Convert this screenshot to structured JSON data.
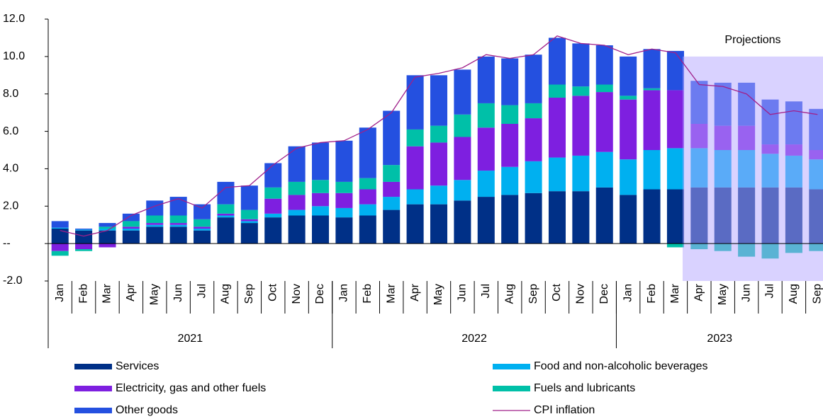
{
  "chart_data": {
    "type": "stacked_bar",
    "categories": [
      "Jan",
      "Feb",
      "Mar",
      "Apr",
      "May",
      "Jun",
      "Jul",
      "Aug",
      "Sep",
      "Oct",
      "Nov",
      "Dec",
      "Jan",
      "Feb",
      "Mar",
      "Apr",
      "May",
      "Jun",
      "Jul",
      "Aug",
      "Sep",
      "Oct",
      "Nov",
      "Dec",
      "Jan",
      "Feb",
      "Mar",
      "Apr",
      "May",
      "Jun",
      "Jul",
      "Aug",
      "Sep"
    ],
    "groups": [
      {
        "label": "2021",
        "count": 12
      },
      {
        "label": "2022",
        "count": 12
      },
      {
        "label": "2023",
        "count": 9
      }
    ],
    "series": [
      {
        "name": "Services",
        "color": "#003087",
        "values": [
          0.8,
          0.7,
          0.7,
          0.7,
          0.9,
          0.9,
          0.7,
          1.4,
          1.1,
          1.4,
          1.5,
          1.5,
          1.4,
          1.5,
          1.8,
          2.1,
          2.1,
          2.3,
          2.5,
          2.6,
          2.7,
          2.8,
          2.8,
          3.0,
          2.6,
          2.9,
          2.9,
          3.0,
          3.0,
          3.0,
          3.0,
          3.0,
          2.9
        ]
      },
      {
        "name": "Food and non-alcoholic beverages",
        "color": "#00b0f0",
        "values": [
          0.05,
          0.05,
          0.1,
          0.1,
          0.1,
          0.1,
          0.1,
          0.1,
          0.1,
          0.2,
          0.3,
          0.5,
          0.5,
          0.6,
          0.7,
          0.8,
          1.0,
          1.1,
          1.4,
          1.5,
          1.7,
          1.8,
          1.9,
          1.9,
          1.9,
          2.1,
          2.2,
          2.1,
          2.0,
          2.0,
          1.8,
          1.7,
          1.6
        ]
      },
      {
        "name": "Electricity, gas and other fuels",
        "color": "#7e1fe0",
        "values": [
          -0.4,
          -0.3,
          -0.2,
          0.1,
          0.1,
          0.1,
          0.1,
          0.1,
          0.1,
          0.8,
          0.8,
          0.7,
          0.8,
          0.8,
          0.8,
          2.3,
          2.3,
          2.3,
          2.3,
          2.3,
          2.3,
          3.2,
          3.2,
          3.2,
          3.2,
          3.2,
          3.1,
          1.3,
          1.3,
          1.3,
          0.5,
          0.6,
          0.5
        ]
      },
      {
        "name": "Fuels and lubricants",
        "color": "#00c0a8",
        "values": [
          -0.25,
          -0.1,
          0.1,
          0.3,
          0.4,
          0.4,
          0.4,
          0.5,
          0.5,
          0.6,
          0.7,
          0.7,
          0.6,
          0.6,
          0.9,
          0.9,
          0.9,
          1.2,
          1.3,
          1.0,
          0.8,
          0.7,
          0.5,
          0.4,
          0.2,
          0.1,
          -0.2,
          -0.3,
          -0.4,
          -0.7,
          -0.8,
          -0.5,
          -0.4
        ]
      },
      {
        "name": "Other goods",
        "color": "#2450e0",
        "values": [
          0.35,
          0.05,
          0.2,
          0.4,
          0.8,
          1.0,
          0.8,
          1.2,
          1.3,
          1.3,
          1.9,
          2.0,
          2.2,
          2.7,
          2.9,
          2.9,
          2.7,
          2.4,
          2.5,
          2.5,
          2.6,
          2.5,
          2.3,
          2.1,
          2.1,
          2.1,
          2.1,
          2.3,
          2.3,
          2.3,
          2.4,
          2.3,
          2.2
        ]
      }
    ],
    "line": {
      "name": "CPI inflation",
      "color": "#a0208a",
      "values": [
        0.7,
        0.4,
        0.7,
        1.5,
        2.0,
        2.4,
        1.9,
        3.0,
        3.1,
        4.2,
        5.1,
        5.4,
        5.5,
        6.1,
        7.0,
        8.9,
        9.1,
        9.4,
        10.1,
        9.9,
        10.1,
        11.1,
        10.7,
        10.6,
        10.1,
        10.4,
        10.2,
        8.5,
        8.4,
        8.0,
        6.9,
        7.1,
        6.9
      ]
    },
    "projections": {
      "label": "Projections",
      "start": 27,
      "top": 10
    },
    "ylim": [
      -2,
      12
    ],
    "yticks": [
      {
        "value": -2,
        "label": "-2.0"
      },
      {
        "value": 0,
        "label": "--"
      },
      {
        "value": 2,
        "label": "2.0"
      },
      {
        "value": 4,
        "label": "4.0"
      },
      {
        "value": 6,
        "label": "6.0"
      },
      {
        "value": 8,
        "label": "8.0"
      },
      {
        "value": 10,
        "label": "10.0"
      },
      {
        "value": 12,
        "label": "12.0"
      }
    ]
  }
}
